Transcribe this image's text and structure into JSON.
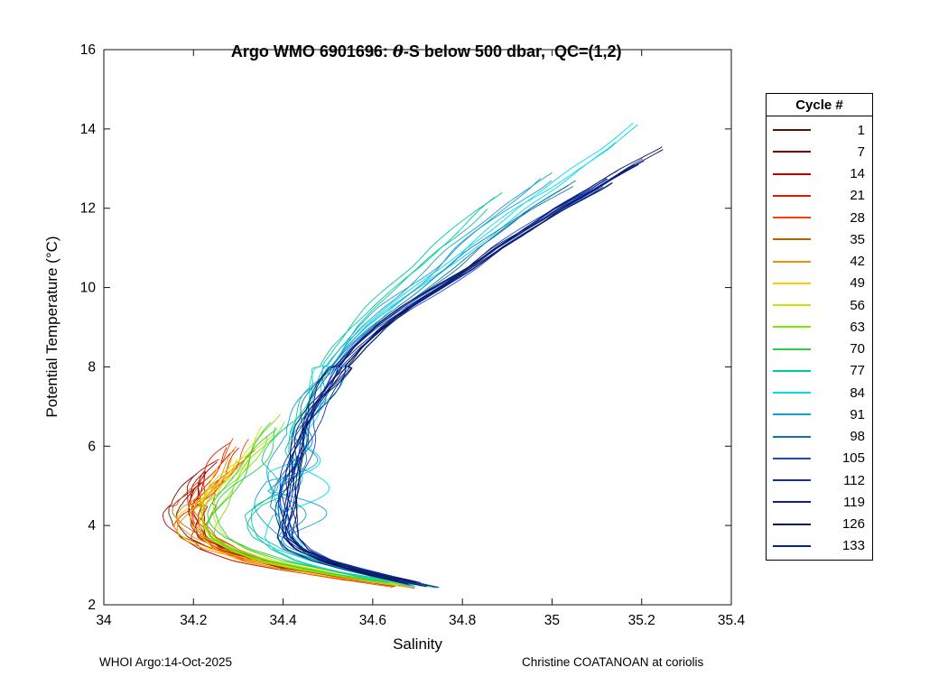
{
  "title": {
    "prefix": "Argo WMO 6901696: ",
    "theta": "θ",
    "suffix": "-S below 500 dbar,  QC=(1,2)"
  },
  "footer": {
    "left": "WHOI Argo:14-Oct-2025",
    "right": "Christine COATANOAN at coriolis"
  },
  "legend": {
    "title": "Cycle #"
  },
  "chart_data": {
    "type": "line",
    "title": "Argo WMO 6901696: θ-S below 500 dbar,  QC=(1,2)",
    "xlabel": "Salinity",
    "ylabel": "Potential Temperature (°C)",
    "xlim": [
      34,
      35.4
    ],
    "ylim": [
      2,
      16
    ],
    "xticks": [
      34,
      34.2,
      34.4,
      34.6,
      34.8,
      35,
      35.2,
      35.4
    ],
    "xtick_labels": [
      "34",
      "34.2",
      "34.4",
      "34.6",
      "34.8",
      "35",
      "35.2",
      "35.4"
    ],
    "yticks": [
      2,
      4,
      6,
      8,
      10,
      12,
      14,
      16
    ],
    "ytick_labels": [
      "2",
      "4",
      "6",
      "8",
      "10",
      "12",
      "14",
      "16"
    ],
    "grid": false,
    "legend_position": "right",
    "legend_title": "Cycle #",
    "description": "Theta-S spaghetti curves: warm branch from (35.33,14.15) down-left to (34.45,7), left hook to minimum salinity ~34.17 near 4.3C for early red/orange cycles (~34.40 for late blue cycles), then back right to (34.6-34.8, ~2.5) at the cold deep end.",
    "shape_templates": {
      "early": [
        [
          7.0,
          34.4
        ],
        [
          6.6,
          34.36
        ],
        [
          6.2,
          34.32
        ],
        [
          5.8,
          34.28
        ],
        [
          5.4,
          34.245
        ],
        [
          5.0,
          34.21
        ],
        [
          4.6,
          34.185
        ],
        [
          4.3,
          34.175
        ],
        [
          4.0,
          34.18
        ],
        [
          3.7,
          34.2
        ],
        [
          3.4,
          34.25
        ],
        [
          3.1,
          34.33
        ],
        [
          2.9,
          34.42
        ],
        [
          2.7,
          34.53
        ],
        [
          2.55,
          34.62
        ],
        [
          2.4,
          34.7
        ]
      ],
      "late": [
        [
          14.2,
          35.34
        ],
        [
          13.5,
          35.25
        ],
        [
          13.0,
          35.17
        ],
        [
          12.5,
          35.1
        ],
        [
          12.0,
          35.02
        ],
        [
          11.5,
          34.95
        ],
        [
          11.0,
          34.88
        ],
        [
          10.5,
          34.82
        ],
        [
          10.0,
          34.75
        ],
        [
          9.5,
          34.68
        ],
        [
          9.0,
          34.62
        ],
        [
          8.5,
          34.57
        ],
        [
          8.0,
          34.53
        ],
        [
          7.5,
          34.5
        ],
        [
          7.0,
          34.47
        ],
        [
          6.5,
          34.45
        ],
        [
          6.0,
          34.44
        ],
        [
          5.5,
          34.43
        ],
        [
          5.0,
          34.42
        ],
        [
          4.5,
          34.41
        ],
        [
          4.0,
          34.405
        ],
        [
          3.7,
          34.41
        ],
        [
          3.4,
          34.44
        ],
        [
          3.1,
          34.5
        ],
        [
          2.9,
          34.56
        ],
        [
          2.7,
          34.63
        ],
        [
          2.55,
          34.69
        ],
        [
          2.4,
          34.75
        ]
      ]
    },
    "series": [
      {
        "label": "1",
        "color": "#5e0f00",
        "blend": 0.0,
        "t_top": 5.3,
        "jitter": 0.02,
        "wiggle": 0,
        "seed": 11
      },
      {
        "label": "7",
        "color": "#8f0000",
        "blend": 0.02,
        "t_top": 5.6,
        "jitter": 0.022,
        "wiggle": 0,
        "seed": 12
      },
      {
        "label": "14",
        "color": "#c00000",
        "blend": 0.03,
        "t_top": 5.9,
        "jitter": 0.022,
        "wiggle": 0,
        "seed": 13
      },
      {
        "label": "21",
        "color": "#e41a00",
        "blend": 0.05,
        "t_top": 6.1,
        "jitter": 0.024,
        "wiggle": 0,
        "seed": 14
      },
      {
        "label": "28",
        "color": "#ff4000",
        "blend": 0.06,
        "t_top": 6.2,
        "jitter": 0.024,
        "wiggle": 0,
        "seed": 15
      },
      {
        "label": "35",
        "color": "#b36200",
        "blend": 0.08,
        "t_top": 5.2,
        "jitter": 0.02,
        "wiggle": 0,
        "seed": 16
      },
      {
        "label": "42",
        "color": "#f09000",
        "blend": 0.1,
        "t_top": 6.0,
        "jitter": 0.022,
        "wiggle": 0,
        "seed": 17
      },
      {
        "label": "49",
        "color": "#ffc800",
        "blend": 0.12,
        "t_top": 5.7,
        "jitter": 0.022,
        "wiggle": 0,
        "seed": 18
      },
      {
        "label": "56",
        "color": "#c8e600",
        "blend": 0.22,
        "t_top": 6.5,
        "jitter": 0.02,
        "wiggle": 0,
        "seed": 19
      },
      {
        "label": "63",
        "color": "#7de800",
        "blend": 0.28,
        "t_top": 6.8,
        "jitter": 0.02,
        "wiggle": 0,
        "seed": 20
      },
      {
        "label": "70",
        "color": "#2ecc40",
        "blend": 0.34,
        "t_top": 6.6,
        "jitter": 0.02,
        "wiggle": 0,
        "seed": 21
      },
      {
        "label": "77",
        "color": "#00c8a0",
        "blend": 0.72,
        "t_top": 12.4,
        "jitter": 0.02,
        "wiggle": 0.05,
        "seed": 22
      },
      {
        "label": "84",
        "color": "#00dcec",
        "blend": 0.85,
        "t_top": 14.15,
        "jitter": 0.022,
        "wiggle": 0.11,
        "seed": 23
      },
      {
        "label": "91",
        "color": "#12a0d2",
        "blend": 0.8,
        "t_top": 12.9,
        "jitter": 0.024,
        "wiggle": 0.14,
        "seed": 24
      },
      {
        "label": "98",
        "color": "#0a78aa",
        "blend": 0.9,
        "t_top": 12.7,
        "jitter": 0.018,
        "wiggle": 0.05,
        "seed": 25
      },
      {
        "label": "105",
        "color": "#1e46d2",
        "blend": 1.0,
        "t_top": 13.25,
        "jitter": 0.015,
        "wiggle": 0,
        "seed": 26
      },
      {
        "label": "112",
        "color": "#0f2fb4",
        "blend": 1.0,
        "t_top": 12.95,
        "jitter": 0.015,
        "wiggle": 0,
        "seed": 27
      },
      {
        "label": "119",
        "color": "#0a2090",
        "blend": 1.0,
        "t_top": 12.75,
        "jitter": 0.014,
        "wiggle": 0,
        "seed": 28
      },
      {
        "label": "126",
        "color": "#041150",
        "blend": 1.0,
        "t_top": 13.55,
        "jitter": 0.013,
        "wiggle": 0,
        "seed": 29
      },
      {
        "label": "133",
        "color": "#0d2470",
        "blend": 1.0,
        "t_top": 13.1,
        "jitter": 0.014,
        "wiggle": 0,
        "seed": 30
      }
    ]
  }
}
